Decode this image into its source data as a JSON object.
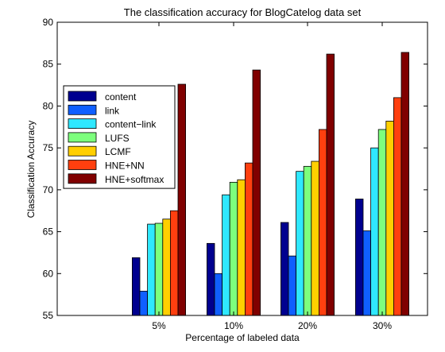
{
  "chart_data": {
    "type": "bar",
    "title": "The classification accuracy for BlogCatelog data set",
    "xlabel": "Percentage of labeled data",
    "ylabel": "Classification Accuracy",
    "ylim": [
      55,
      90
    ],
    "yticks": [
      55,
      60,
      65,
      70,
      75,
      80,
      85,
      90
    ],
    "categories": [
      "5%",
      "10%",
      "20%",
      "30%"
    ],
    "grid": false,
    "legend_position": "top-left",
    "series": [
      {
        "name": "content",
        "color": "#00008f",
        "values": [
          61.9,
          63.6,
          66.1,
          68.9
        ]
      },
      {
        "name": "link",
        "color": "#0f5fff",
        "values": [
          57.9,
          60.0,
          62.1,
          65.1
        ]
      },
      {
        "name": "content−link",
        "color": "#2fe8ff",
        "values": [
          65.9,
          69.4,
          72.2,
          75.0
        ]
      },
      {
        "name": "LUFS",
        "color": "#7dff7d",
        "values": [
          66.0,
          70.9,
          72.8,
          77.2
        ]
      },
      {
        "name": "LCMF",
        "color": "#ffcf00",
        "values": [
          66.5,
          71.2,
          73.4,
          78.2
        ]
      },
      {
        "name": "HNE+NN",
        "color": "#ff3f0f",
        "values": [
          67.5,
          73.2,
          77.2,
          81.0
        ]
      },
      {
        "name": "HNE+softmax",
        "color": "#800000",
        "values": [
          82.6,
          84.3,
          86.2,
          86.4
        ]
      }
    ]
  }
}
